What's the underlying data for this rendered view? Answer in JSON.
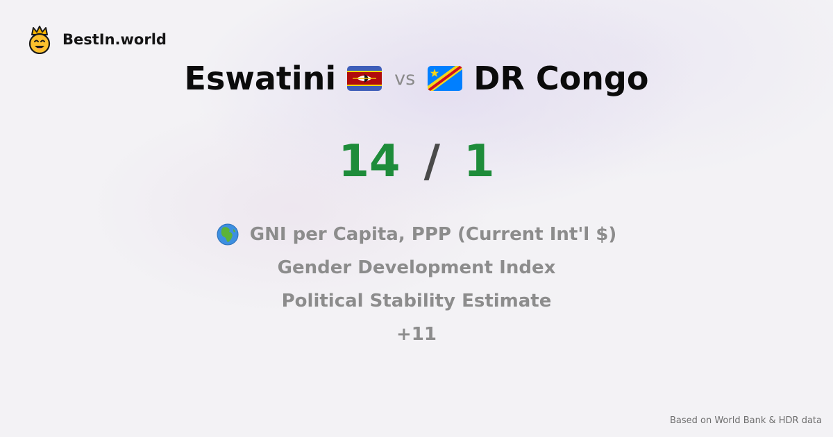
{
  "brand": {
    "name": "BestIn.world",
    "logo_icon": "smiling-crown-face-icon"
  },
  "comparison": {
    "country_a": {
      "name": "Eswatini",
      "flag_icon": "eswatini-flag-icon"
    },
    "vs_label": "vs",
    "country_b": {
      "name": "DR Congo",
      "flag_icon": "dr-congo-flag-icon"
    }
  },
  "score": {
    "a": "14",
    "separator": "/",
    "b": "1"
  },
  "metrics": {
    "globe_icon": "globe-africa-icon",
    "items": [
      "GNI per Capita, PPP (Current Int'l $)",
      "Gender Development Index",
      "Political Stability Estimate"
    ],
    "more_label": "+11"
  },
  "footer": {
    "source": "Based on World Bank & HDR data"
  },
  "colors": {
    "score_green": "#1e8c3a",
    "metric_gray": "#8c8c8c",
    "background": "#f3f2f5"
  }
}
